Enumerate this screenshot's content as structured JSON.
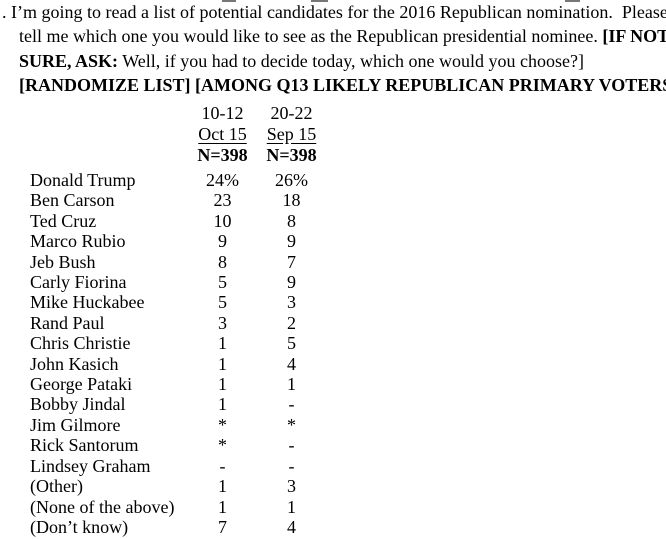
{
  "question": {
    "line1": ". I’m going to read a list of potential candidates for the 2016 Republican nomination.  Please",
    "line2_regular": "tell me which one you would like to see as the Republican presidential nominee. ",
    "line2_bold": "[IF NOT",
    "line3_bold": "SURE, ASK:",
    "line3_regular": " Well, if you had to decide today, which one would you choose?]",
    "line4": "[RANDOMIZE LIST] [AMONG Q13 LIKELY REPUBLICAN PRIMARY VOTERS]"
  },
  "table": {
    "columns": [
      {
        "dates": "10-12",
        "month": "Oct 15",
        "n": "N=398"
      },
      {
        "dates": "20-22",
        "month": "Sep 15",
        "n": "N=398"
      }
    ],
    "rows": [
      {
        "name": "Donald Trump",
        "oct": "24%",
        "sep": "26%"
      },
      {
        "name": "Ben Carson",
        "oct": "23",
        "sep": "18"
      },
      {
        "name": "Ted Cruz",
        "oct": "10",
        "sep": "8"
      },
      {
        "name": "Marco Rubio",
        "oct": "9",
        "sep": "9"
      },
      {
        "name": "Jeb Bush",
        "oct": "8",
        "sep": "7"
      },
      {
        "name": "Carly Fiorina",
        "oct": "5",
        "sep": "9"
      },
      {
        "name": "Mike Huckabee",
        "oct": "5",
        "sep": "3"
      },
      {
        "name": "Rand Paul",
        "oct": "3",
        "sep": "2"
      },
      {
        "name": "Chris Christie",
        "oct": "1",
        "sep": "5"
      },
      {
        "name": "John Kasich",
        "oct": "1",
        "sep": "4"
      },
      {
        "name": "George Pataki",
        "oct": "1",
        "sep": "1"
      },
      {
        "name": "Bobby Jindal",
        "oct": "1",
        "sep": "-"
      },
      {
        "name": "Jim Gilmore",
        "oct": "*",
        "sep": "*"
      },
      {
        "name": "Rick Santorum",
        "oct": "*",
        "sep": "-"
      },
      {
        "name": "Lindsey Graham",
        "oct": "-",
        "sep": "-"
      },
      {
        "name": "(Other)",
        "oct": "1",
        "sep": "3"
      },
      {
        "name": "(None of the above)",
        "oct": "1",
        "sep": "1"
      },
      {
        "name": "(Don’t know)",
        "oct": "7",
        "sep": "4"
      }
    ]
  }
}
